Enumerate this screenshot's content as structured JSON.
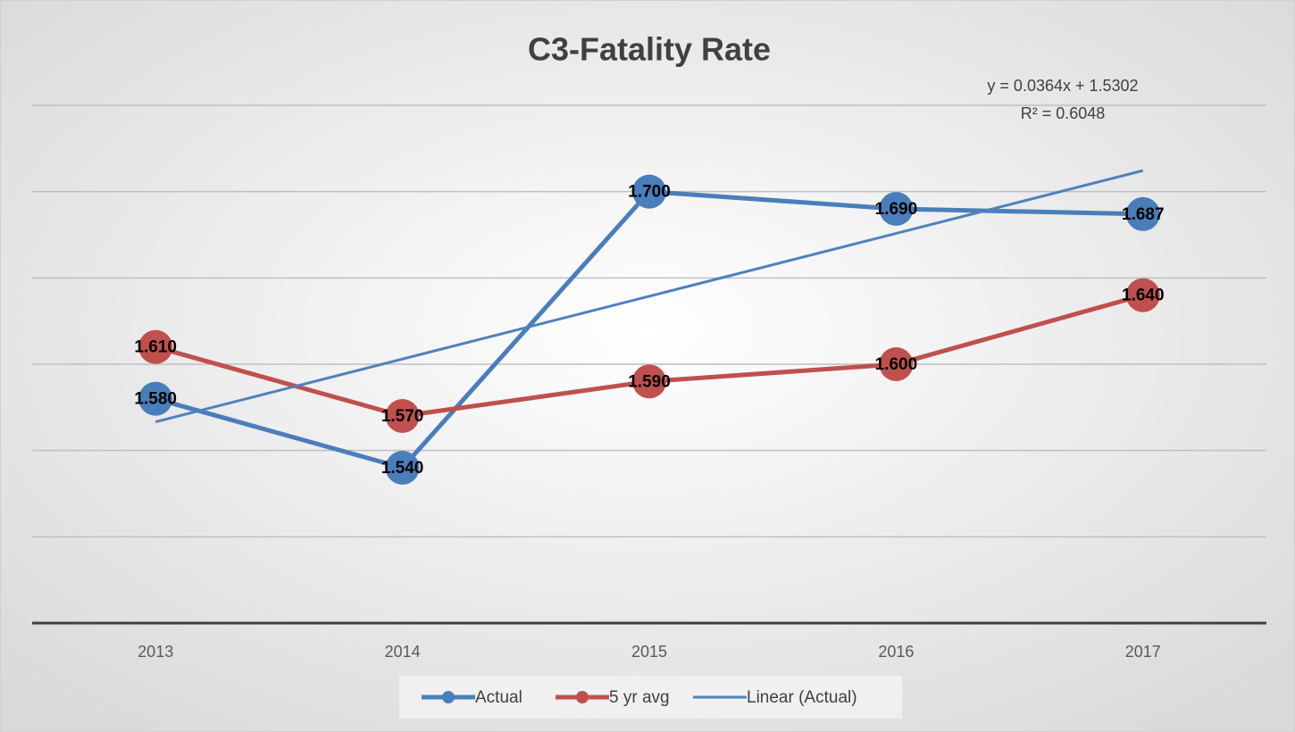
{
  "chart_data": {
    "type": "line",
    "title": "C3-Fatality Rate",
    "categories": [
      "2013",
      "2014",
      "2015",
      "2016",
      "2017"
    ],
    "series": [
      {
        "name": "Actual",
        "color": "#4a7ebb",
        "values": [
          1.58,
          1.54,
          1.7,
          1.69,
          1.687
        ],
        "value_labels": [
          "1.580",
          "1.540",
          "1.700",
          "1.690",
          "1.687"
        ]
      },
      {
        "name": "5 yr avg",
        "color": "#c0504d",
        "values": [
          1.61,
          1.57,
          1.59,
          1.6,
          1.64
        ],
        "value_labels": [
          "1.610",
          "1.570",
          "1.590",
          "1.600",
          "1.640"
        ]
      }
    ],
    "trendline": {
      "name": "Linear (Actual)",
      "color": "#4f81bd",
      "slope": 0.0364,
      "intercept": 1.5302,
      "equation_label": "y = 0.0364x + 1.5302",
      "r_squared_label": "R² = 0.6048"
    },
    "ylim": [
      1.45,
      1.75
    ],
    "yticks": [
      1.45,
      1.5,
      1.55,
      1.6,
      1.65,
      1.7,
      1.75
    ],
    "grid": true,
    "legend": "bottom"
  }
}
